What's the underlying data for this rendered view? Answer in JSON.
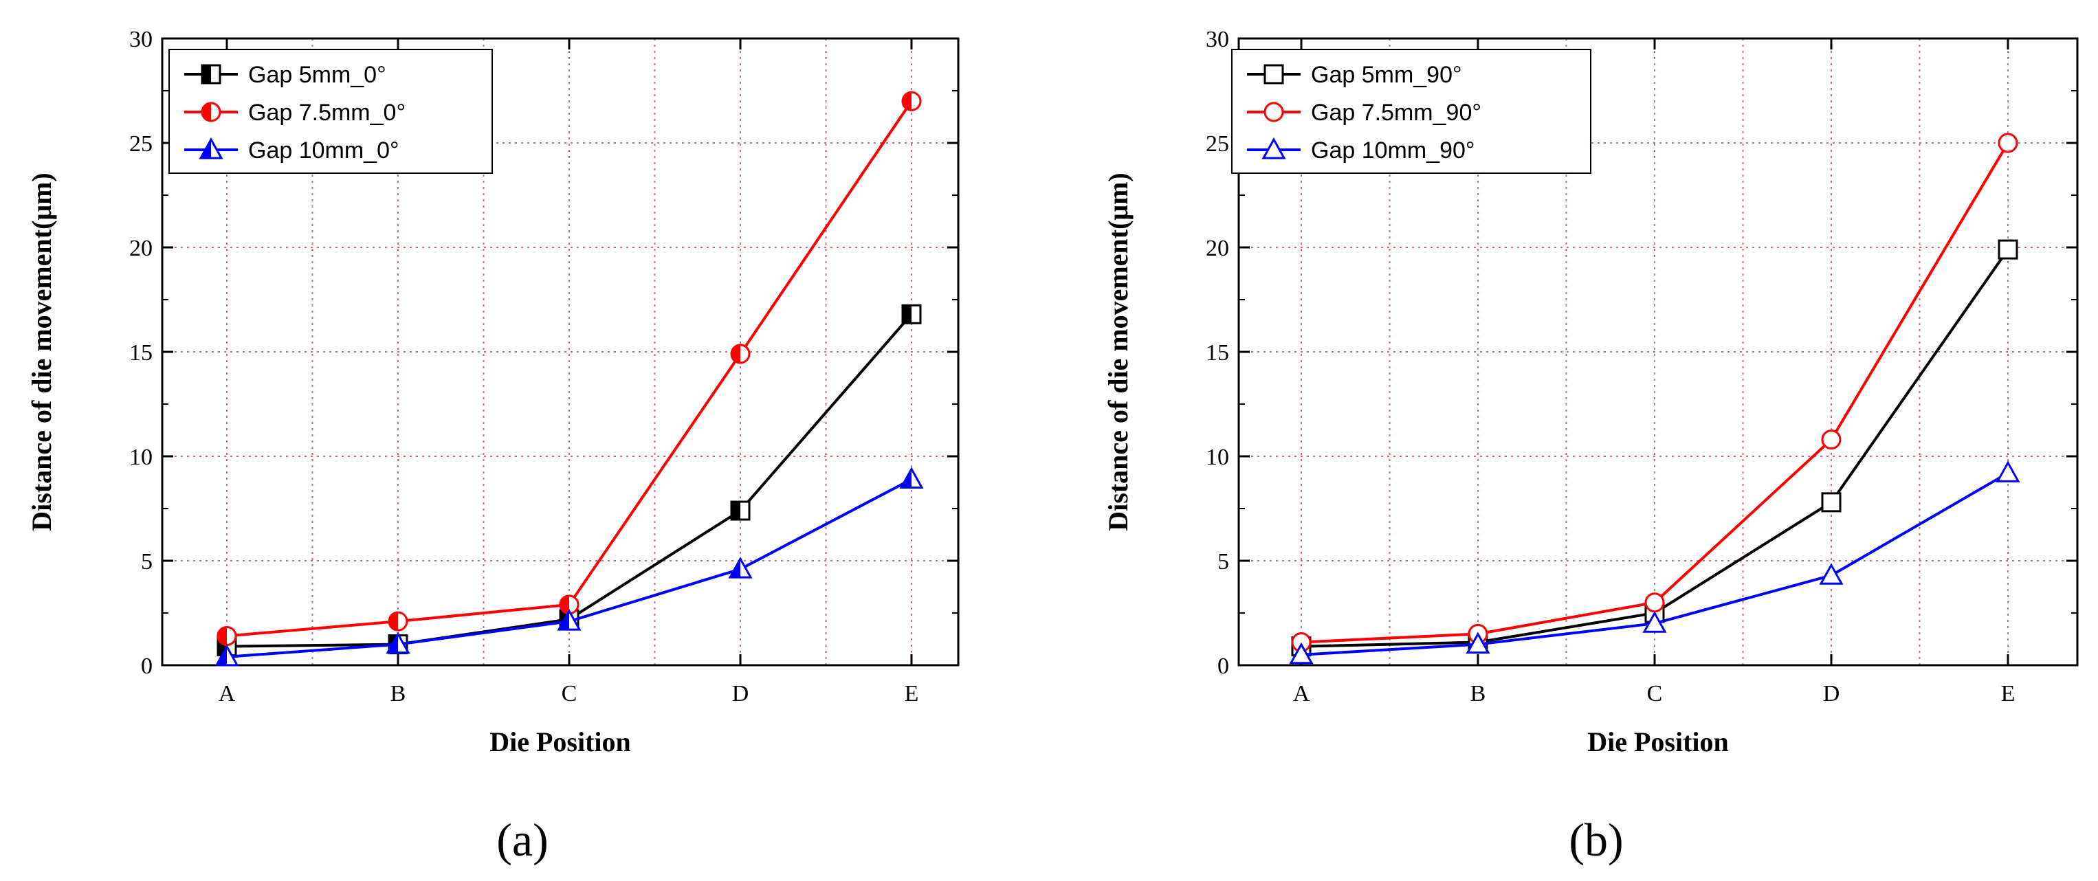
{
  "chart_data": [
    {
      "type": "line",
      "panel_label": "(a)",
      "xlabel": "Die Position",
      "ylabel": "Distance of die movement(μm)",
      "categories": [
        "A",
        "B",
        "C",
        "D",
        "E"
      ],
      "ylim": [
        0,
        30
      ],
      "yticks": [
        "0",
        "5",
        "10",
        "15",
        "20",
        "25",
        "30"
      ],
      "grid": true,
      "legend_position": "top-left",
      "series": [
        {
          "name": "Gap 5mm_0°",
          "color": "#000000",
          "marker": "half-square",
          "values": [
            0.9,
            1.0,
            2.2,
            7.4,
            16.8
          ]
        },
        {
          "name": "Gap 7.5mm_0°",
          "color": "#ff0000",
          "marker": "half-circle",
          "values": [
            1.4,
            2.1,
            2.9,
            14.9,
            27.0
          ]
        },
        {
          "name": "Gap 10mm_0°",
          "color": "#0000ff",
          "marker": "half-triangle",
          "values": [
            0.4,
            1.0,
            2.1,
            4.6,
            8.9
          ]
        }
      ]
    },
    {
      "type": "line",
      "panel_label": "(b)",
      "xlabel": "Die Position",
      "ylabel": "Distance of die movement(μm)",
      "categories": [
        "A",
        "B",
        "C",
        "D",
        "E"
      ],
      "ylim": [
        0,
        30
      ],
      "yticks": [
        "0",
        "5",
        "10",
        "15",
        "20",
        "25",
        "30"
      ],
      "grid": true,
      "legend_position": "top-left",
      "series": [
        {
          "name": "Gap 5mm_90°",
          "color": "#000000",
          "marker": "open-square",
          "values": [
            0.9,
            1.1,
            2.5,
            7.8,
            19.9
          ]
        },
        {
          "name": "Gap 7.5mm_90°",
          "color": "#ff0000",
          "marker": "open-circle",
          "values": [
            1.1,
            1.5,
            3.0,
            10.8,
            25.0
          ]
        },
        {
          "name": "Gap 10mm_90°",
          "color": "#0000ff",
          "marker": "open-triangle",
          "values": [
            0.5,
            1.0,
            2.0,
            4.3,
            9.2
          ]
        }
      ]
    }
  ]
}
